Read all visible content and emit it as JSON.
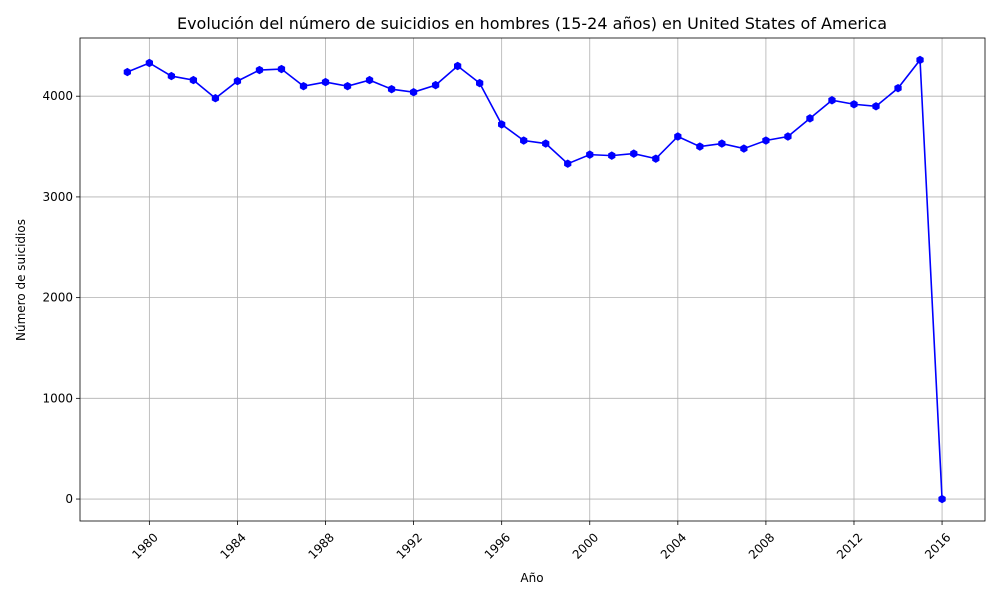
{
  "chart_data": {
    "type": "line",
    "title": "Evolución del número de suicidios en hombres (15-24 años) en United States of America",
    "xlabel": "Año",
    "ylabel": "Número de suicidios",
    "grid": true,
    "x_ticks": [
      1980,
      1984,
      1988,
      1992,
      1996,
      2000,
      2004,
      2008,
      2012,
      2016
    ],
    "y_ticks": [
      0,
      1000,
      2000,
      3000,
      4000
    ],
    "xlim": [
      1976.85,
      2017.95
    ],
    "ylim": [
      -218,
      4578
    ],
    "series_color": "#0000ff",
    "series": [
      {
        "x": [
          1979,
          1980,
          1981,
          1982,
          1983,
          1984,
          1985,
          1986,
          1987,
          1988,
          1989,
          1990,
          1991,
          1992,
          1993,
          1994,
          1995,
          1996,
          1997,
          1998,
          1999,
          2000,
          2001,
          2002,
          2003,
          2004,
          2005,
          2006,
          2007,
          2008,
          2009,
          2010,
          2011,
          2012,
          2013,
          2014,
          2015,
          2016
        ],
        "y": [
          4240,
          4330,
          4200,
          4160,
          3980,
          4150,
          4260,
          4270,
          4100,
          4140,
          4100,
          4160,
          4070,
          4040,
          4110,
          4300,
          4130,
          3720,
          3560,
          3530,
          3330,
          3420,
          3410,
          3430,
          3380,
          3600,
          3500,
          3530,
          3480,
          3560,
          3600,
          3780,
          3960,
          3920,
          3900,
          4080,
          4360,
          0
        ]
      }
    ]
  }
}
